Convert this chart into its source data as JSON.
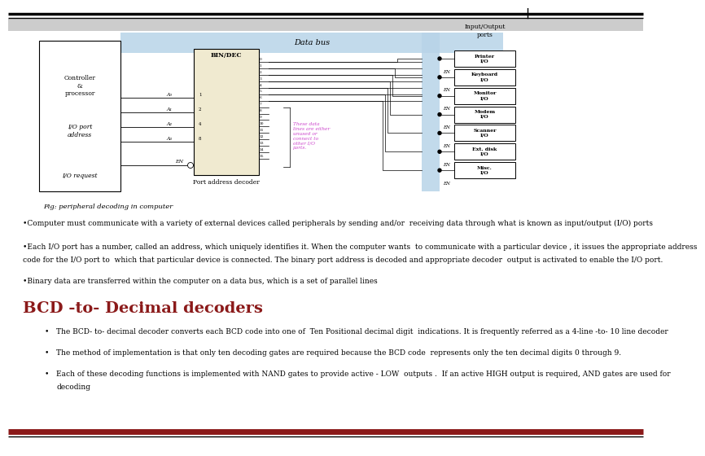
{
  "bg_color": "#ffffff",
  "fig_caption": "Fig: peripheral decoding in computer",
  "bullet1": "•Computer must communicate with a variety of external devices called peripherals by sending and/or  receiving data through what is known as input/output (I/O) ports",
  "bullet2_l1": "•Each I/O port has a number, called an address, which uniquely identifies it. When the computer wants  to communicate with a particular device , it issues the appropriate address",
  "bullet2_l2": "code for the I/O port to  which that particular device is connected. The binary port address is decoded and appropriate decoder  output is activated to enable the I/O port.",
  "bullet3": "•Binary data are transferred within the computer on a data bus, which is a set of parallel lines",
  "heading": "BCD -to- Decimal decoders",
  "heading_color": "#8B1A1A",
  "sub1": "The BCD- to- decimal decoder converts each BCD code into one of  Ten Positional decimal digit  indications. It is frequently referred as a 4-line -to- 10 line decoder",
  "sub2": "The method of implementation is that only ten decoding gates are required because the BCD code  represents only the ten decimal digits 0 through 9.",
  "sub3_l1": "Each of these decoding functions is implemented with NAND gates to provide active - LOW  outputs .  If an active HIGH output is required, AND gates are used for",
  "sub3_l2": "decoding",
  "io_devices": [
    "Printer\nI/O",
    "Keyboard\nI/O",
    "Monitor\nI/O",
    "Modem\nI/O",
    "Scanner\nI/O",
    "Ext. disk\nI/O",
    "Misc.\nI/O"
  ],
  "bottom_bar_color": "#8B1A1A",
  "diagram_bg": "#f0ead0",
  "bus_color": "#b8d4e8"
}
